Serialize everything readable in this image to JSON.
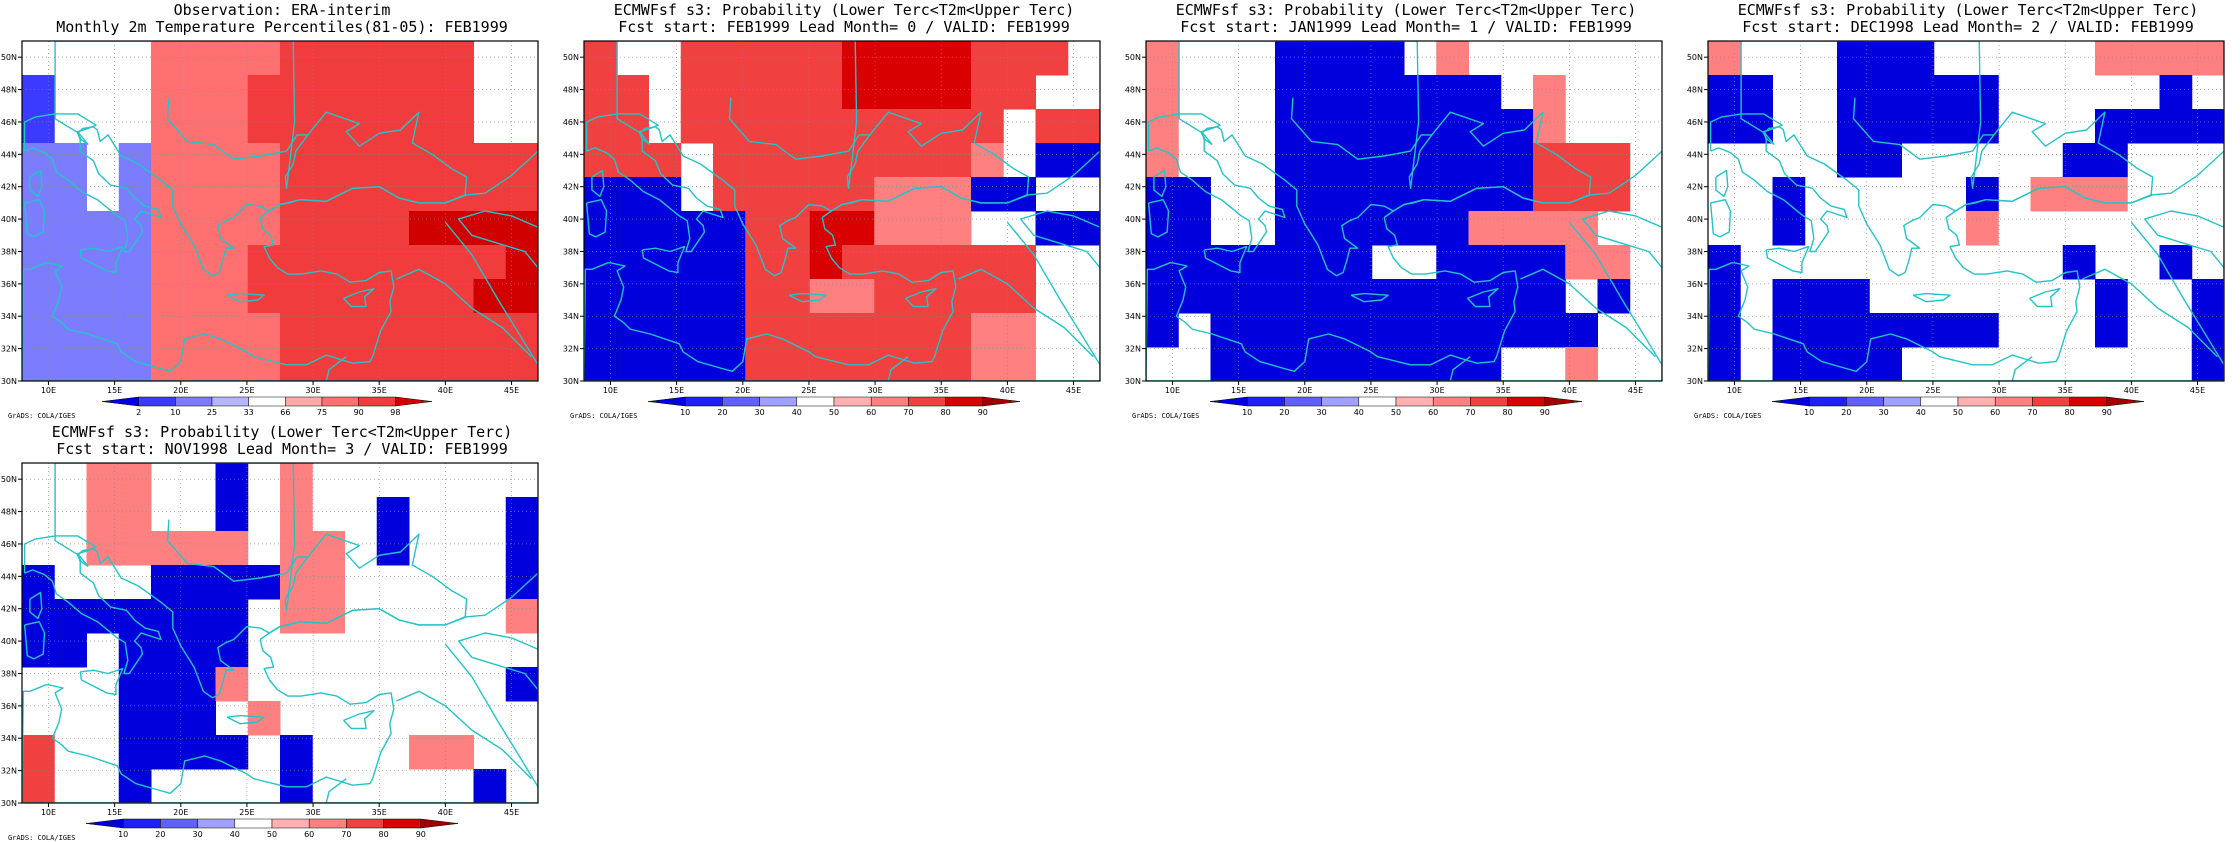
{
  "panels": [
    {
      "title": "Observation: ERA-interim",
      "subtitle": "Monthly 2m Temperature Percentiles(81-05): FEB1999",
      "legend": [
        "2",
        "10",
        "25",
        "33",
        "66",
        "75",
        "90",
        "98"
      ]
    },
    {
      "title": "ECMWFsf s3: Probability (Lower Terc<T2m<Upper Terc)",
      "subtitle": "Fcst start: FEB1999   Lead Month= 0 / VALID: FEB1999",
      "legend": [
        "10",
        "20",
        "30",
        "40",
        "50",
        "60",
        "70",
        "80",
        "90"
      ]
    },
    {
      "title": "ECMWFsf s3: Probability (Lower Terc<T2m<Upper Terc)",
      "subtitle": "Fcst start: JAN1999   Lead Month= 1 / VALID: FEB1999",
      "legend": [
        "10",
        "20",
        "30",
        "40",
        "50",
        "60",
        "70",
        "80",
        "90"
      ]
    },
    {
      "title": "ECMWFsf s3: Probability (Lower Terc<T2m<Upper Terc)",
      "subtitle": "Fcst start: DEC1998   Lead Month= 2 / VALID: FEB1999",
      "legend": [
        "10",
        "20",
        "30",
        "40",
        "50",
        "60",
        "70",
        "80",
        "90"
      ]
    },
    {
      "title": "ECMWFsf s3: Probability (Lower Terc<T2m<Upper Terc)",
      "subtitle": "Fcst start: NOV1998   Lead Month= 3 / VALID: FEB1999",
      "legend": [
        "10",
        "20",
        "30",
        "40",
        "50",
        "60",
        "70",
        "80",
        "90"
      ]
    }
  ],
  "lon_labels": [
    "10E",
    "15E",
    "20E",
    "25E",
    "30E",
    "35E",
    "40E",
    "45E"
  ],
  "lat_labels": [
    "30N",
    "32N",
    "34N",
    "36N",
    "38N",
    "40N",
    "42N",
    "44N",
    "46N",
    "48N",
    "50N"
  ],
  "credit": "GrADS: COLA/IGES",
  "colors": {
    "coast": "#22c4c8",
    "obs_scale": [
      "#0000e8",
      "#3b3bff",
      "#7c7cff",
      "#b4b4ff",
      "#ffffff",
      "#ffaaaa",
      "#ff7070",
      "#f03c3c",
      "#d00000"
    ],
    "prob_scale": [
      "#0000dd",
      "#2020ff",
      "#6060ff",
      "#a0a0ff",
      "#ffffff",
      "#ffb0b0",
      "#ff8080",
      "#f04040",
      "#d80000",
      "#a00000"
    ]
  }
}
